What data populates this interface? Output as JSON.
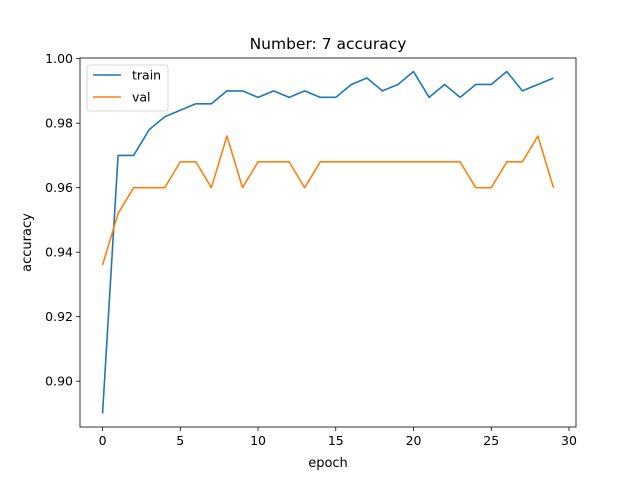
{
  "chart_data": {
    "type": "line",
    "title": "Number: 7 accuracy",
    "xlabel": "epoch",
    "ylabel": "accuracy",
    "xlim": [
      -1.45,
      30.45
    ],
    "ylim": [
      0.8858,
      1.0002
    ],
    "xticks": [
      0,
      5,
      10,
      15,
      20,
      25,
      30
    ],
    "yticks": [
      0.9,
      0.92,
      0.94,
      0.96,
      0.98,
      1.0
    ],
    "ytick_labels": [
      "0.90",
      "0.92",
      "0.94",
      "0.96",
      "0.98",
      "1.00"
    ],
    "grid": false,
    "legend_position": "top-left",
    "x": [
      0,
      1,
      2,
      3,
      4,
      5,
      6,
      7,
      8,
      9,
      10,
      11,
      12,
      13,
      14,
      15,
      16,
      17,
      18,
      19,
      20,
      21,
      22,
      23,
      24,
      25,
      26,
      27,
      28,
      29
    ],
    "series": [
      {
        "name": "train",
        "color": "#1f77b4",
        "values": [
          0.89,
          0.97,
          0.97,
          0.978,
          0.982,
          0.984,
          0.986,
          0.986,
          0.99,
          0.99,
          0.988,
          0.99,
          0.988,
          0.99,
          0.988,
          0.988,
          0.992,
          0.994,
          0.99,
          0.992,
          0.996,
          0.988,
          0.992,
          0.988,
          0.992,
          0.992,
          0.996,
          0.99,
          0.992,
          0.994
        ]
      },
      {
        "name": "val",
        "color": "#ff7f0e",
        "values": [
          0.936,
          0.952,
          0.96,
          0.96,
          0.96,
          0.968,
          0.968,
          0.96,
          0.976,
          0.96,
          0.968,
          0.968,
          0.968,
          0.96,
          0.968,
          0.968,
          0.968,
          0.968,
          0.968,
          0.968,
          0.968,
          0.968,
          0.968,
          0.968,
          0.96,
          0.96,
          0.968,
          0.968,
          0.976,
          0.96
        ]
      }
    ]
  }
}
